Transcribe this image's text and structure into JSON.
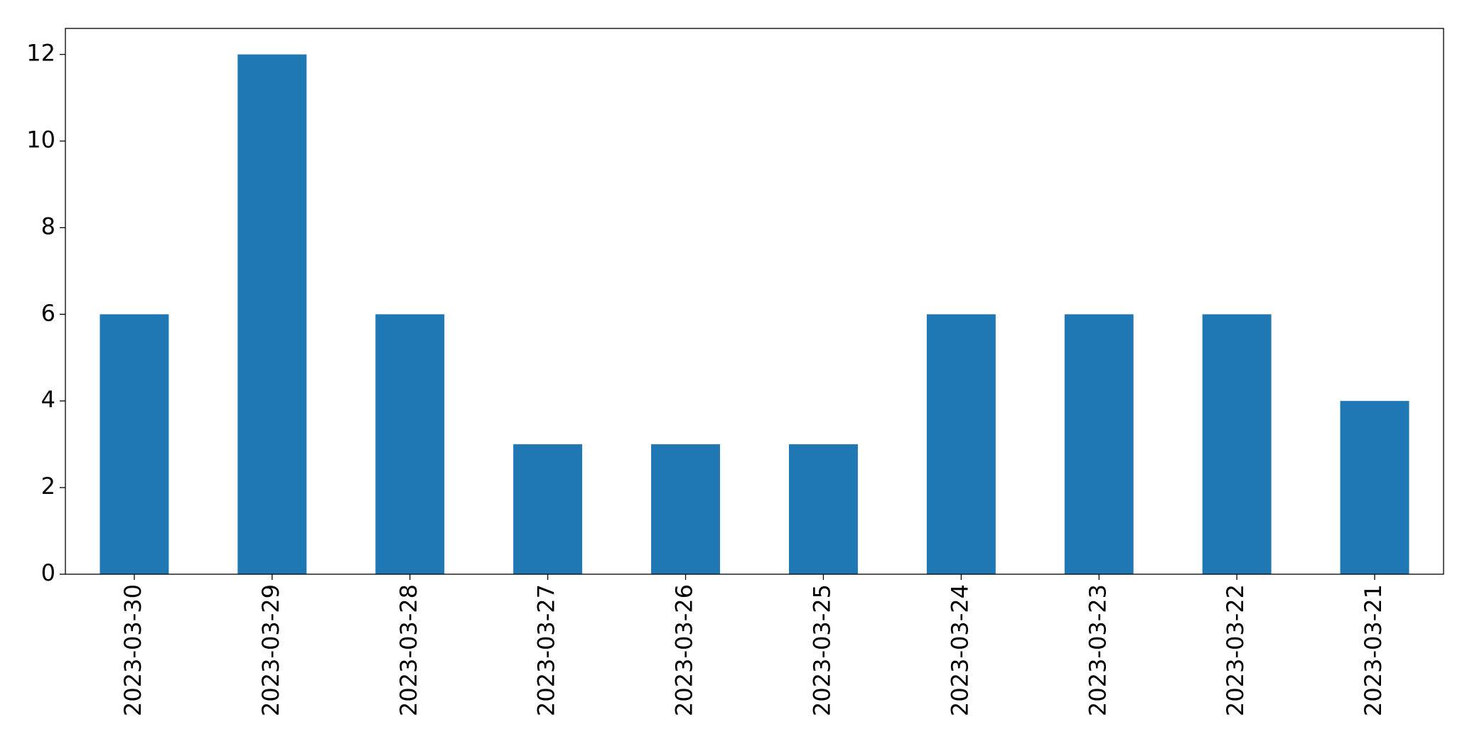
{
  "chart_data": {
    "type": "bar",
    "categories": [
      "2023-03-30",
      "2023-03-29",
      "2023-03-28",
      "2023-03-27",
      "2023-03-26",
      "2023-03-25",
      "2023-03-24",
      "2023-03-23",
      "2023-03-22",
      "2023-03-21"
    ],
    "values": [
      6,
      12,
      6,
      3,
      3,
      3,
      6,
      6,
      6,
      4
    ],
    "color": "#1f77b4",
    "ylim": [
      0,
      12.6
    ],
    "yticks": [
      0,
      2,
      4,
      6,
      8,
      10,
      12
    ],
    "grid": false
  }
}
